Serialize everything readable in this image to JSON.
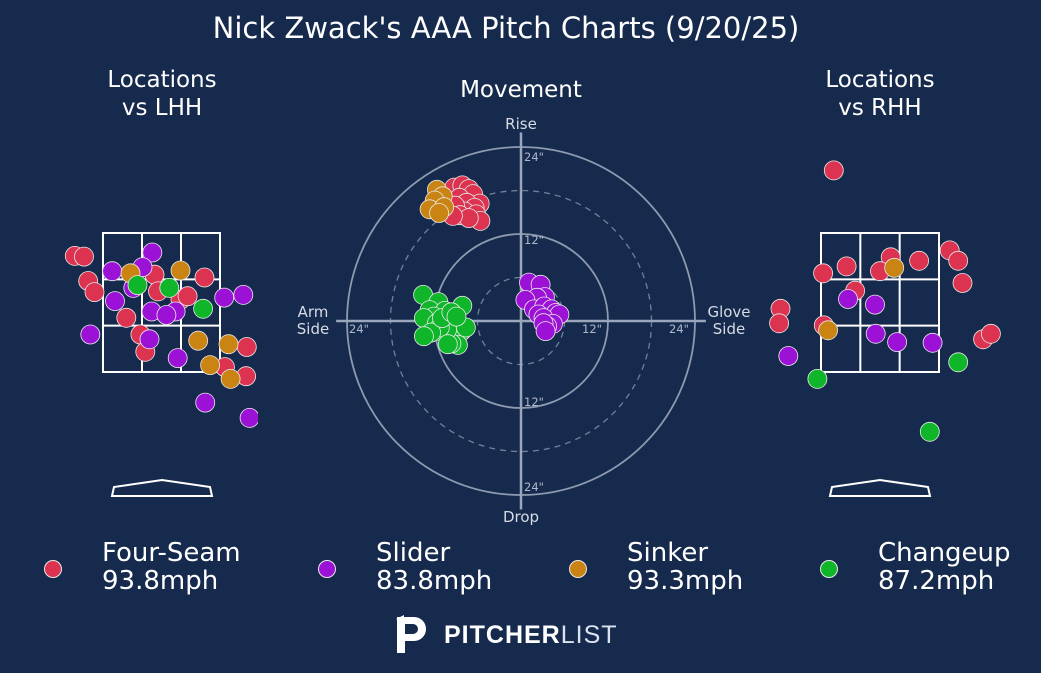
{
  "title": "Nick Zwack's AAA Pitch Charts (9/20/25)",
  "colors": {
    "background": "#162a4d",
    "Four-Seam": "#dc3450",
    "Slider": "#9b12d6",
    "Sinker": "#c98413",
    "Changeup": "#0fb62a"
  },
  "legend": [
    {
      "pitch": "Four-Seam",
      "speed": "93.8mph"
    },
    {
      "pitch": "Slider",
      "speed": "83.8mph"
    },
    {
      "pitch": "Sinker",
      "speed": "93.3mph"
    },
    {
      "pitch": "Changeup",
      "speed": "87.2mph"
    }
  ],
  "brand": {
    "strong": "PITCHER",
    "light": "LIST",
    "icon": "pitcherlist-logo-icon"
  },
  "chart_data": [
    {
      "type": "scatter",
      "title": "Locations\nvs LHH",
      "xlim": [
        -2.4,
        2.4
      ],
      "ylim": [
        -0.3,
        5.4
      ],
      "x_unit": "ft from plate center",
      "y_unit": "ft above ground",
      "strike_zone": {
        "x": [
          -0.83,
          0.83
        ],
        "y": [
          1.5,
          3.5
        ]
      },
      "series": [
        {
          "name": "Four-Seam",
          "points": [
            [
              -1.23,
              3.17
            ],
            [
              -1.1,
              3.16
            ],
            [
              -1.04,
              2.81
            ],
            [
              -0.95,
              2.65
            ],
            [
              0.61,
              2.86
            ],
            [
              -0.1,
              2.9
            ],
            [
              -0.05,
              2.66
            ],
            [
              0.27,
              2.54
            ],
            [
              0.37,
              2.59
            ],
            [
              -0.5,
              2.28
            ],
            [
              -0.3,
              2.04
            ],
            [
              -0.23,
              1.79
            ],
            [
              1.21,
              1.86
            ],
            [
              1.2,
              1.44
            ],
            [
              0.9,
              1.57
            ]
          ]
        },
        {
          "name": "Slider",
          "points": [
            [
              -0.13,
              3.22
            ],
            [
              -0.27,
              3.01
            ],
            [
              -0.7,
              2.95
            ],
            [
              -0.4,
              2.71
            ],
            [
              -0.66,
              2.52
            ],
            [
              -0.14,
              2.37
            ],
            [
              0.2,
              2.37
            ],
            [
              0.89,
              2.57
            ],
            [
              1.16,
              2.61
            ],
            [
              0.07,
              2.32
            ],
            [
              -1.01,
              2.04
            ],
            [
              -0.17,
              1.97
            ],
            [
              0.23,
              1.7
            ],
            [
              0.62,
              1.06
            ],
            [
              1.25,
              0.84
            ],
            [
              1.7,
              0.62
            ]
          ]
        },
        {
          "name": "Sinker",
          "points": [
            [
              -0.44,
              2.92
            ],
            [
              0.27,
              2.96
            ],
            [
              0.52,
              1.95
            ],
            [
              0.95,
              1.9
            ],
            [
              0.69,
              1.6
            ],
            [
              1.55,
              1.63
            ],
            [
              0.98,
              1.4
            ]
          ]
        },
        {
          "name": "Changeup",
          "points": [
            [
              -0.34,
              2.75
            ],
            [
              0.11,
              2.71
            ],
            [
              0.59,
              2.41
            ]
          ]
        }
      ]
    },
    {
      "type": "scatter",
      "title": "Movement",
      "xlim": [
        -26,
        26
      ],
      "ylim": [
        -26,
        26
      ],
      "x_unit": "inches horizontal break",
      "y_unit": "inches induced vertical break",
      "axis_labels": {
        "top": "Rise",
        "bottom": "Drop",
        "left": "Arm\nSide",
        "right": "Glove\nSide"
      },
      "ring_labels": [
        "12\"",
        "24\""
      ],
      "series": [
        {
          "name": "Four-Seam",
          "points": [
            [
              -9.2,
              18.4
            ],
            [
              -8.1,
              18.7
            ],
            [
              -7.2,
              18.2
            ],
            [
              -6.6,
              17.5
            ],
            [
              -5.7,
              16.2
            ],
            [
              -8.5,
              17
            ],
            [
              -7.5,
              16.3
            ],
            [
              -6.4,
              15.6
            ],
            [
              -7.8,
              15.1
            ],
            [
              -9.1,
              15.9
            ],
            [
              -8.4,
              14.6
            ],
            [
              -6.2,
              14.7
            ],
            [
              -5.6,
              13.8
            ],
            [
              -7.2,
              14.2
            ],
            [
              -9.4,
              14.5
            ]
          ]
        },
        {
          "name": "Slider",
          "points": [
            [
              1.1,
              5.3
            ],
            [
              2.7,
              5
            ],
            [
              3.3,
              3.3
            ],
            [
              2.2,
              3.2
            ],
            [
              0.6,
              2.9
            ],
            [
              1.8,
              1.6
            ],
            [
              3.7,
              1.4
            ],
            [
              3.2,
              2
            ],
            [
              4.2,
              1.6
            ],
            [
              4.8,
              1.1
            ],
            [
              5.3,
              0.9
            ],
            [
              2.4,
              0.9
            ],
            [
              3.1,
              0.4
            ],
            [
              4.4,
              -0.4
            ],
            [
              3.6,
              -0.7
            ],
            [
              3.1,
              -0.3
            ],
            [
              3.4,
              -1.4
            ]
          ]
        },
        {
          "name": "Sinker",
          "points": [
            [
              -11.6,
              18.1
            ],
            [
              -10.8,
              17.2
            ],
            [
              -11.9,
              16.6
            ],
            [
              -12.6,
              15.4
            ],
            [
              -10.6,
              15.7
            ],
            [
              -11.3,
              14.9
            ]
          ]
        },
        {
          "name": "Changeup",
          "points": [
            [
              -13.5,
              3.6
            ],
            [
              -11.4,
              2.6
            ],
            [
              -12.6,
              1.5
            ],
            [
              -10.5,
              1.4
            ],
            [
              -12,
              0.6
            ],
            [
              -13.4,
              0.4
            ],
            [
              -11.6,
              -0.3
            ],
            [
              -10.8,
              -1.5
            ],
            [
              -8.2,
              -1.4
            ],
            [
              -9.5,
              -0.2
            ],
            [
              -9.2,
              -2.2
            ],
            [
              -8.7,
              -3.3
            ],
            [
              -9.6,
              -3.1
            ],
            [
              -10.2,
              -1.2
            ],
            [
              -7.6,
              -0.9
            ],
            [
              -11.2,
              -0.9
            ],
            [
              -12.4,
              -1.6
            ],
            [
              -13.4,
              -2.1
            ],
            [
              -10.1,
              -3.2
            ],
            [
              -10.9,
              0.4
            ],
            [
              -8.1,
              2.1
            ],
            [
              -9.6,
              1.2
            ],
            [
              -8.9,
              0.6
            ]
          ]
        }
      ]
    },
    {
      "type": "scatter",
      "title": "Locations\nvs RHH",
      "xlim": [
        -2.4,
        2.4
      ],
      "ylim": [
        -0.3,
        5.4
      ],
      "x_unit": "ft from plate center",
      "y_unit": "ft above ground",
      "strike_zone": {
        "x": [
          -0.83,
          0.83
        ],
        "y": [
          1.5,
          3.5
        ]
      },
      "series": [
        {
          "name": "Four-Seam",
          "points": [
            [
              -0.65,
              4.4
            ],
            [
              0.15,
              3.15
            ],
            [
              0.55,
              3.1
            ],
            [
              0.98,
              3.25
            ],
            [
              1.1,
              3.1
            ],
            [
              -0.47,
              3.02
            ],
            [
              -0.8,
              2.92
            ],
            [
              0.0,
              2.95
            ],
            [
              1.16,
              2.78
            ],
            [
              -0.35,
              2.67
            ],
            [
              -1.4,
              2.41
            ],
            [
              -1.42,
              2.2
            ],
            [
              -0.79,
              2.17
            ],
            [
              1.45,
              1.97
            ],
            [
              1.56,
              2.05
            ]
          ]
        },
        {
          "name": "Slider",
          "points": [
            [
              -0.45,
              2.55
            ],
            [
              -0.07,
              2.47
            ],
            [
              -0.06,
              2.05
            ],
            [
              0.24,
              1.93
            ],
            [
              0.74,
              1.92
            ],
            [
              -1.29,
              1.73
            ]
          ]
        },
        {
          "name": "Sinker",
          "points": [
            [
              0.2,
              3.0
            ],
            [
              -0.73,
              2.1
            ]
          ]
        },
        {
          "name": "Changeup",
          "points": [
            [
              1.1,
              1.64
            ],
            [
              -0.88,
              1.4
            ],
            [
              0.7,
              0.64
            ]
          ]
        }
      ]
    }
  ]
}
